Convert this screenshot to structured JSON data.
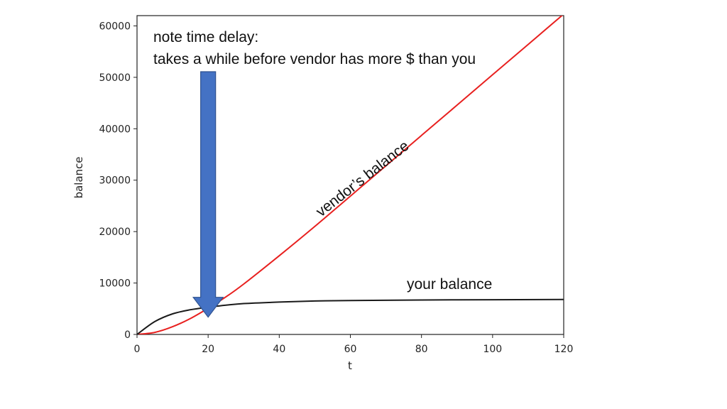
{
  "chart_data": {
    "type": "line",
    "title": "",
    "xlabel": "t",
    "ylabel": "balance",
    "xlim": [
      0,
      120
    ],
    "ylim": [
      0,
      62000
    ],
    "grid": false,
    "x_ticks": [
      "0",
      "20",
      "40",
      "60",
      "80",
      "100",
      "120"
    ],
    "y_ticks": [
      "0",
      "10000",
      "20000",
      "30000",
      "40000",
      "50000",
      "60000"
    ],
    "series": [
      {
        "color": "#e8201f",
        "x": [
          0,
          5,
          10,
          15,
          20,
          25,
          30,
          40,
          50,
          60,
          70,
          80,
          90,
          100,
          110,
          120
        ],
        "y": [
          0,
          400,
          1500,
          3100,
          5100,
          7300,
          9800,
          15300,
          21000,
          26900,
          32800,
          38700,
          44600,
          50500,
          56400,
          62300
        ]
      },
      {
        "color": "#1a1a1a",
        "x": [
          0,
          5,
          10,
          15,
          20,
          25,
          30,
          40,
          50,
          60,
          80,
          100,
          120
        ],
        "y": [
          0,
          2500,
          4000,
          4800,
          5300,
          5700,
          6000,
          6300,
          6500,
          6600,
          6700,
          6750,
          6800
        ]
      }
    ],
    "annotations": {
      "note_line1": "note time delay:",
      "note_line2": "takes a while before vendor has more $ than you",
      "vendor_label": "vendor’s balance",
      "your_label": "your balance"
    },
    "arrow": {
      "color": "#4472c4",
      "stroke": "#2f528f",
      "x": 20,
      "y": 7500
    }
  }
}
